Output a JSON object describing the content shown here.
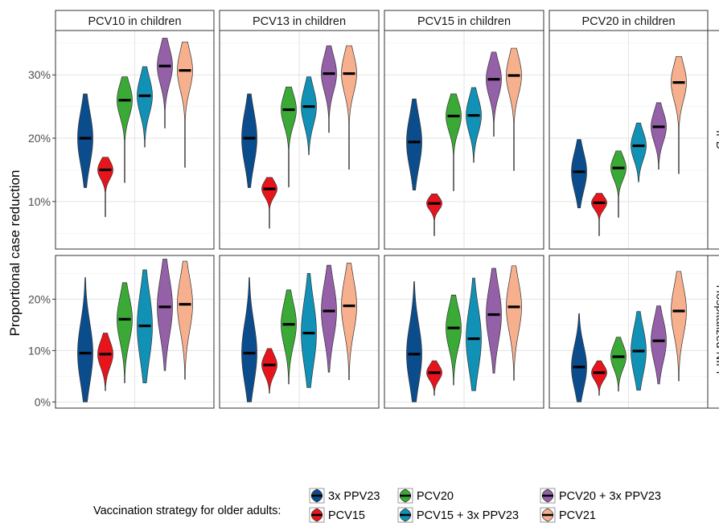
{
  "chart_data": {
    "type": "violin",
    "ylabel": "Proportional case reduction",
    "columns": [
      "PCV10 in children",
      "PCV13 in children",
      "PCV15 in children",
      "PCV20 in children"
    ],
    "rows": [
      "IPD",
      "Hospitalized NIPP"
    ],
    "legend": {
      "title": "Vaccination strategy for older adults:",
      "position": "bottom"
    },
    "series": [
      {
        "name": "3x PPV23",
        "color": "#0b4c8c"
      },
      {
        "name": "PCV15",
        "color": "#e8141b"
      },
      {
        "name": "PCV20",
        "color": "#3aa935"
      },
      {
        "name": "PCV15 + 3x PPV23",
        "color": "#1191b5"
      },
      {
        "name": "PCV20 + 3x PPV23",
        "color": "#9460a8"
      },
      {
        "name": "PCV21",
        "color": "#f7b08e"
      }
    ],
    "panels": [
      {
        "row": "IPD",
        "column": "PCV10 in children",
        "ylim": [
          2.5,
          37
        ],
        "yticks": [
          "10%",
          "20%",
          "30%"
        ],
        "yticks_values": [
          10,
          20,
          30
        ],
        "violins": [
          {
            "series": "3x PPV23",
            "median": 20.0,
            "min": 12.2,
            "max": 27.0
          },
          {
            "series": "PCV15",
            "median": 15.0,
            "min": 7.6,
            "max": 17.0
          },
          {
            "series": "PCV20",
            "median": 26.0,
            "min": 13.0,
            "max": 29.7
          },
          {
            "series": "PCV15 + 3x PPV23",
            "median": 26.7,
            "min": 18.6,
            "max": 31.3
          },
          {
            "series": "PCV20 + 3x PPV23",
            "median": 31.4,
            "min": 21.6,
            "max": 35.8
          },
          {
            "series": "PCV21",
            "median": 30.7,
            "min": 15.4,
            "max": 35.2
          }
        ]
      },
      {
        "row": "IPD",
        "column": "PCV13 in children",
        "ylim": [
          2.5,
          37
        ],
        "yticks": [
          "10%",
          "20%",
          "30%"
        ],
        "yticks_values": [
          10,
          20,
          30
        ],
        "violins": [
          {
            "series": "3x PPV23",
            "median": 20.0,
            "min": 12.2,
            "max": 27.0
          },
          {
            "series": "PCV15",
            "median": 12.0,
            "min": 5.8,
            "max": 13.8
          },
          {
            "series": "PCV20",
            "median": 24.5,
            "min": 12.3,
            "max": 28.1
          },
          {
            "series": "PCV15 + 3x PPV23",
            "median": 25.0,
            "min": 17.4,
            "max": 29.7
          },
          {
            "series": "PCV20 + 3x PPV23",
            "median": 30.2,
            "min": 20.9,
            "max": 34.6
          },
          {
            "series": "PCV21",
            "median": 30.2,
            "min": 15.1,
            "max": 34.6
          }
        ]
      },
      {
        "row": "IPD",
        "column": "PCV15 in children",
        "ylim": [
          2.5,
          37
        ],
        "yticks": [
          "10%",
          "20%",
          "30%"
        ],
        "yticks_values": [
          10,
          20,
          30
        ],
        "violins": [
          {
            "series": "3x PPV23",
            "median": 19.4,
            "min": 11.8,
            "max": 26.2
          },
          {
            "series": "PCV15",
            "median": 9.7,
            "min": 4.6,
            "max": 11.2
          },
          {
            "series": "PCV20",
            "median": 23.5,
            "min": 11.7,
            "max": 27.0
          },
          {
            "series": "PCV15 + 3x PPV23",
            "median": 23.6,
            "min": 16.2,
            "max": 28.0
          },
          {
            "series": "PCV20 + 3x PPV23",
            "median": 29.3,
            "min": 20.3,
            "max": 33.6
          },
          {
            "series": "PCV21",
            "median": 29.9,
            "min": 14.9,
            "max": 34.2
          }
        ]
      },
      {
        "row": "IPD",
        "column": "PCV20 in children",
        "ylim": [
          2.5,
          37
        ],
        "yticks": [
          "10%",
          "20%",
          "30%"
        ],
        "yticks_values": [
          10,
          20,
          30
        ],
        "violins": [
          {
            "series": "3x PPV23",
            "median": 14.7,
            "min": 9.0,
            "max": 19.8
          },
          {
            "series": "PCV15",
            "median": 9.8,
            "min": 4.6,
            "max": 11.3
          },
          {
            "series": "PCV20",
            "median": 15.3,
            "min": 7.5,
            "max": 18.0
          },
          {
            "series": "PCV15 + 3x PPV23",
            "median": 18.8,
            "min": 13.1,
            "max": 22.4
          },
          {
            "series": "PCV20 + 3x PPV23",
            "median": 21.8,
            "min": 15.1,
            "max": 25.6
          },
          {
            "series": "PCV21",
            "median": 28.8,
            "min": 14.4,
            "max": 32.9
          }
        ]
      },
      {
        "row": "Hospitalized NIPP",
        "column": "PCV10 in children",
        "ylim": [
          -1.2,
          28.5
        ],
        "yticks": [
          "0%",
          "10%",
          "20%"
        ],
        "yticks_values": [
          0,
          10,
          20
        ],
        "violins": [
          {
            "series": "3x PPV23",
            "median": 9.5,
            "min": 0.0,
            "max": 24.2
          },
          {
            "series": "PCV15",
            "median": 9.3,
            "min": 2.2,
            "max": 13.4
          },
          {
            "series": "PCV20",
            "median": 16.1,
            "min": 3.7,
            "max": 23.2
          },
          {
            "series": "PCV15 + 3x PPV23",
            "median": 14.8,
            "min": 3.7,
            "max": 25.7
          },
          {
            "series": "PCV20 + 3x PPV23",
            "median": 18.5,
            "min": 6.1,
            "max": 27.8
          },
          {
            "series": "PCV21",
            "median": 19.0,
            "min": 4.4,
            "max": 27.4
          }
        ]
      },
      {
        "row": "Hospitalized NIPP",
        "column": "PCV13 in children",
        "ylim": [
          -1.2,
          28.5
        ],
        "yticks": [
          "0%",
          "10%",
          "20%"
        ],
        "yticks_values": [
          0,
          10,
          20
        ],
        "violins": [
          {
            "series": "3x PPV23",
            "median": 9.5,
            "min": 0.0,
            "max": 24.2
          },
          {
            "series": "PCV15",
            "median": 7.2,
            "min": 1.7,
            "max": 10.4
          },
          {
            "series": "PCV20",
            "median": 15.1,
            "min": 3.5,
            "max": 21.8
          },
          {
            "series": "PCV15 + 3x PPV23",
            "median": 13.4,
            "min": 2.8,
            "max": 25.0
          },
          {
            "series": "PCV20 + 3x PPV23",
            "median": 17.7,
            "min": 5.8,
            "max": 26.6
          },
          {
            "series": "PCV21",
            "median": 18.7,
            "min": 4.3,
            "max": 27.0
          }
        ]
      },
      {
        "row": "Hospitalized NIPP",
        "column": "PCV15 in children",
        "ylim": [
          -1.2,
          28.5
        ],
        "yticks": [
          "0%",
          "10%",
          "20%"
        ],
        "yticks_values": [
          0,
          10,
          20
        ],
        "violins": [
          {
            "series": "3x PPV23",
            "median": 9.3,
            "min": 0.0,
            "max": 23.4
          },
          {
            "series": "PCV15",
            "median": 5.7,
            "min": 1.3,
            "max": 8.0
          },
          {
            "series": "PCV20",
            "median": 14.4,
            "min": 3.3,
            "max": 20.8
          },
          {
            "series": "PCV15 + 3x PPV23",
            "median": 12.3,
            "min": 2.2,
            "max": 24.1
          },
          {
            "series": "PCV20 + 3x PPV23",
            "median": 17.0,
            "min": 5.6,
            "max": 26.0
          },
          {
            "series": "PCV21",
            "median": 18.5,
            "min": 4.2,
            "max": 26.5
          }
        ]
      },
      {
        "row": "Hospitalized NIPP",
        "column": "PCV20 in children",
        "ylim": [
          -1.2,
          28.5
        ],
        "yticks": [
          "0%",
          "10%",
          "20%"
        ],
        "yticks_values": [
          0,
          10,
          20
        ],
        "violins": [
          {
            "series": "3x PPV23",
            "median": 6.8,
            "min": 0.0,
            "max": 17.2
          },
          {
            "series": "PCV15",
            "median": 5.7,
            "min": 1.3,
            "max": 8.0
          },
          {
            "series": "PCV20",
            "median": 8.8,
            "min": 2.1,
            "max": 12.6
          },
          {
            "series": "PCV15 + 3x PPV23",
            "median": 9.9,
            "min": 2.3,
            "max": 17.6
          },
          {
            "series": "PCV20 + 3x PPV23",
            "median": 11.9,
            "min": 3.5,
            "max": 18.7
          },
          {
            "series": "PCV21",
            "median": 17.7,
            "min": 4.1,
            "max": 25.4
          }
        ]
      }
    ]
  }
}
